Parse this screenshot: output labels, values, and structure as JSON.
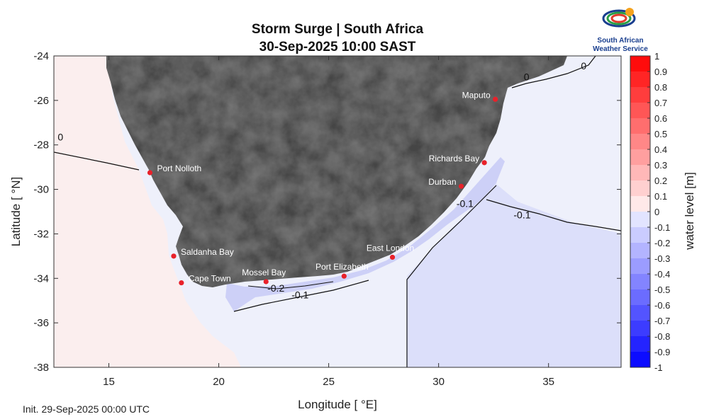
{
  "title_line1": "Storm Surge | South Africa",
  "title_line2": "30-Sep-2025  10:00 SAST",
  "init_text": "Init. 29-Sep-2025 00:00 UTC",
  "logo": {
    "line1": "South African",
    "line2": "Weather Service"
  },
  "axes": {
    "xlabel": "Longitude [ °E]",
    "ylabel": "Latitude [ °N]",
    "xlim": [
      12.5,
      38.3
    ],
    "ylim": [
      -38,
      -24
    ],
    "xticks": [
      15,
      20,
      25,
      30,
      35
    ],
    "yticks": [
      -24,
      -26,
      -28,
      -30,
      -32,
      -34,
      -36,
      -38
    ],
    "xtick_labels": [
      "15",
      "20",
      "25",
      "30",
      "35"
    ],
    "ytick_labels": [
      "-24",
      "-26",
      "-28",
      "-30",
      "-32",
      "-34",
      "-36",
      "-38"
    ]
  },
  "colorbar": {
    "label": "water level [m]",
    "range": [
      -1,
      1
    ],
    "ticks": [
      "1",
      "0.9",
      "0.8",
      "0.7",
      "0.6",
      "0.5",
      "0.4",
      "0.3",
      "0.2",
      "0.1",
      "0",
      "-0.1",
      "-0.2",
      "-0.3",
      "-0.4",
      "-0.5",
      "-0.6",
      "-0.7",
      "-0.8",
      "-0.9",
      "-1"
    ],
    "values": [
      1,
      0.9,
      0.8,
      0.7,
      0.6,
      0.5,
      0.4,
      0.3,
      0.2,
      0.1,
      0,
      -0.1,
      -0.2,
      -0.3,
      -0.4,
      -0.5,
      -0.6,
      -0.7,
      -0.8,
      -0.9,
      -1
    ]
  },
  "colors": {
    "sea_west": "#fbeeee",
    "sea_light": "#eef0fb",
    "sea_mid": "#dcdffa",
    "sea_surge": "#cdd0f7",
    "land": "#7a7a7a",
    "station": "#e8212a"
  },
  "stations": [
    {
      "name": "Maputo",
      "lon": 32.58,
      "lat": -25.95
    },
    {
      "name": "Richards Bay",
      "lon": 32.08,
      "lat": -28.8
    },
    {
      "name": "Durban",
      "lon": 31.03,
      "lat": -29.86
    },
    {
      "name": "Port Nolloth",
      "lon": 16.87,
      "lat": -29.25
    },
    {
      "name": "Saldanha Bay",
      "lon": 17.95,
      "lat": -33.0
    },
    {
      "name": "Cape Town",
      "lon": 18.3,
      "lat": -34.2
    },
    {
      "name": "Mossel Bay",
      "lon": 22.15,
      "lat": -34.15
    },
    {
      "name": "Port Elizabeth",
      "lon": 25.7,
      "lat": -33.9
    },
    {
      "name": "East London",
      "lon": 27.9,
      "lat": -33.05
    }
  ],
  "contour_labels": [
    {
      "text": "0",
      "lon": 34.0,
      "lat": -25.1
    },
    {
      "text": "0",
      "lon": 36.6,
      "lat": -24.6
    },
    {
      "text": "0",
      "lon": 12.8,
      "lat": -27.8
    },
    {
      "text": "-0.1",
      "lon": 31.2,
      "lat": -30.8
    },
    {
      "text": "-0.1",
      "lon": 33.8,
      "lat": -31.3
    },
    {
      "text": "-0.2",
      "lon": 22.6,
      "lat": -34.6
    },
    {
      "text": "-0.1",
      "lon": 23.7,
      "lat": -34.9
    }
  ]
}
